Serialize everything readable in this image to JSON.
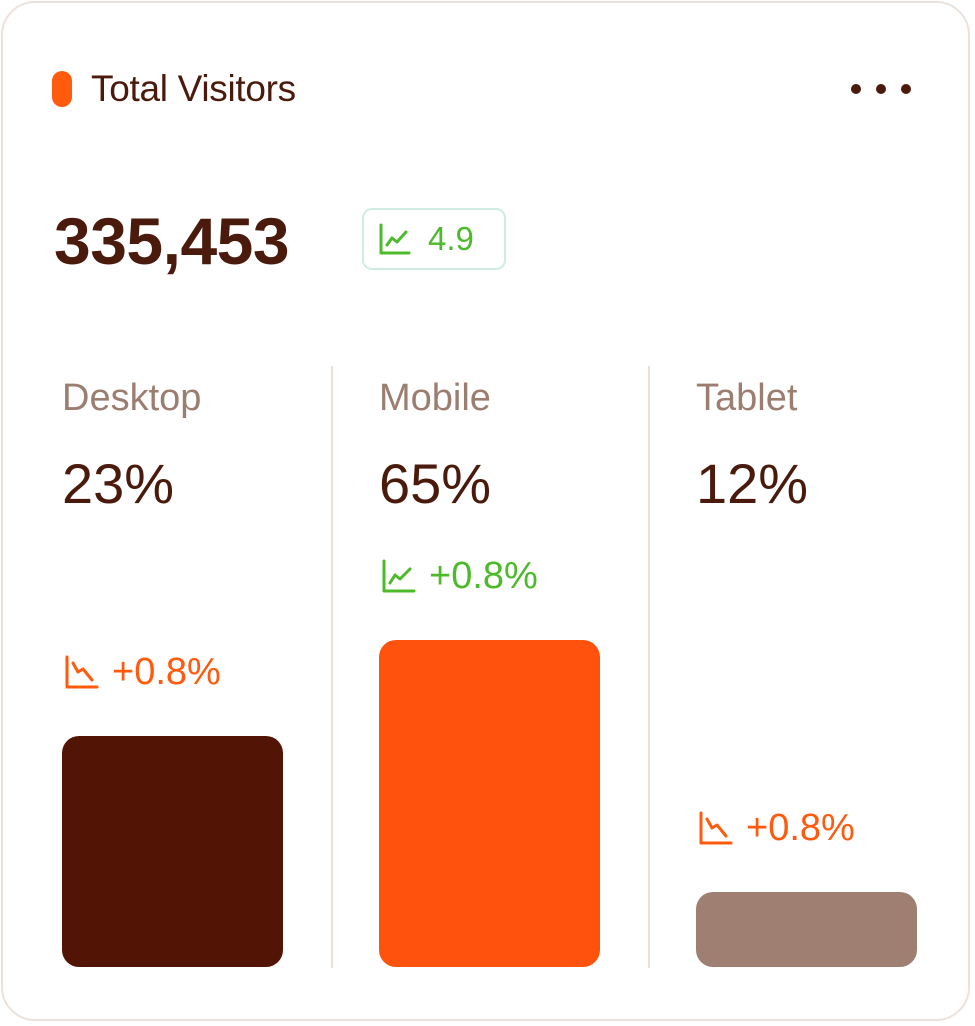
{
  "header": {
    "title": "Total Visitors",
    "more_icon": "more-horizontal-icon"
  },
  "summary": {
    "total": "335,453",
    "change": "4.9",
    "change_icon": "trend-up-icon",
    "change_color": "#4cba2a"
  },
  "colors": {
    "accent": "#ff5a0e",
    "text_dark": "#4a1a0c",
    "text_muted": "#9c7e71",
    "positive": "#4cba2a",
    "negative": "#ff5a0e"
  },
  "devices": [
    {
      "label": "Desktop",
      "percent": "23%",
      "share": 23,
      "change": "+0.8%",
      "trend": "down",
      "trend_icon": "trend-down-icon",
      "bar_color": "#521404"
    },
    {
      "label": "Mobile",
      "percent": "65%",
      "share": 65,
      "change": "+0.8%",
      "trend": "up",
      "trend_icon": "trend-up-icon",
      "bar_color": "#ff520c"
    },
    {
      "label": "Tablet",
      "percent": "12%",
      "share": 12,
      "change": "+0.8%",
      "trend": "down",
      "trend_icon": "trend-down-icon",
      "bar_color": "#9e7f72"
    }
  ]
}
